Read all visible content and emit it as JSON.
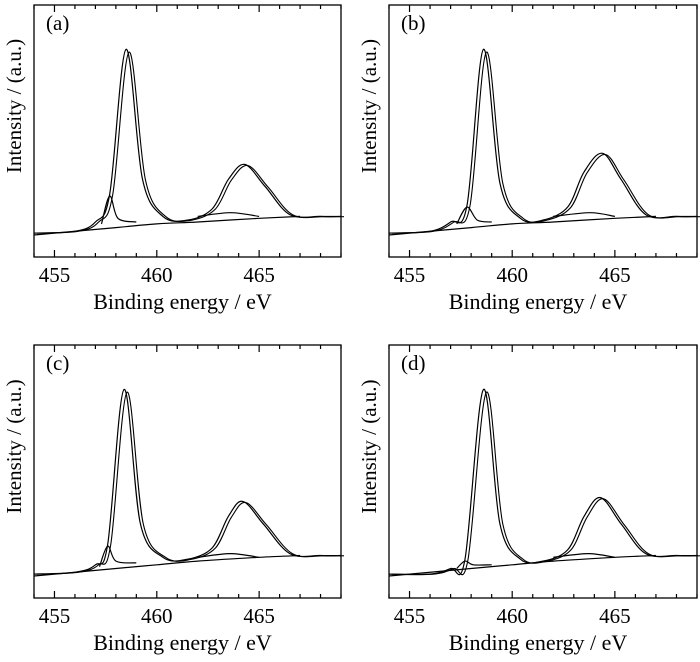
{
  "chart_data": [
    {
      "type": "line",
      "panel_label": "(a)",
      "xlabel": "Binding energy / eV",
      "ylabel": "Intensity / (a.u.)",
      "xlim": [
        454,
        469
      ],
      "ylim": [
        0,
        1.12
      ],
      "x_ticks": [
        455,
        460,
        465
      ],
      "x_tick_labels": [
        "455",
        "460",
        "465"
      ],
      "grid": false,
      "series": [
        {
          "values": [
            {
              "x": 454,
              "y": 0.01
            },
            {
              "x": 456,
              "y": 0.02
            },
            {
              "x": 457,
              "y": 0.07
            },
            {
              "x": 457.7,
              "y": 0.22
            },
            {
              "x": 458.5,
              "y": 1.0
            },
            {
              "x": 459.3,
              "y": 0.3
            },
            {
              "x": 460.3,
              "y": 0.1
            },
            {
              "x": 461.5,
              "y": 0.08
            },
            {
              "x": 462.7,
              "y": 0.14
            },
            {
              "x": 463.5,
              "y": 0.3
            },
            {
              "x": 464.3,
              "y": 0.38
            },
            {
              "x": 465.3,
              "y": 0.26
            },
            {
              "x": 466.5,
              "y": 0.11
            },
            {
              "x": 468,
              "y": 0.1
            },
            {
              "x": 469,
              "y": 0.1
            }
          ]
        },
        {
          "values": [
            {
              "x": 457.3,
              "y": 0.06
            },
            {
              "x": 457.7,
              "y": 0.21
            },
            {
              "x": 458.1,
              "y": 0.09
            },
            {
              "x": 459,
              "y": 0.07
            }
          ]
        },
        {
          "values": [
            {
              "x": 462,
              "y": 0.1
            },
            {
              "x": 463.6,
              "y": 0.12
            },
            {
              "x": 465,
              "y": 0.1
            }
          ]
        },
        {
          "values": [
            {
              "x": 454,
              "y": 0.0
            },
            {
              "x": 458,
              "y": 0.04
            },
            {
              "x": 460,
              "y": 0.06
            },
            {
              "x": 462,
              "y": 0.07
            },
            {
              "x": 465,
              "y": 0.09
            },
            {
              "x": 467,
              "y": 0.1
            }
          ]
        }
      ]
    },
    {
      "type": "line",
      "panel_label": "(b)",
      "xlabel": "Binding energy / eV",
      "ylabel": "Intensity / (a.u.)",
      "xlim": [
        454,
        469
      ],
      "ylim": [
        0,
        1.12
      ],
      "x_ticks": [
        455,
        460,
        465
      ],
      "x_tick_labels": [
        "455",
        "460",
        "465"
      ],
      "grid": false,
      "series": [
        {
          "values": [
            {
              "x": 454,
              "y": 0.01
            },
            {
              "x": 456,
              "y": 0.02
            },
            {
              "x": 457,
              "y": 0.07
            },
            {
              "x": 457.8,
              "y": 0.16
            },
            {
              "x": 458.6,
              "y": 1.0
            },
            {
              "x": 459.4,
              "y": 0.28
            },
            {
              "x": 460.4,
              "y": 0.09
            },
            {
              "x": 461.5,
              "y": 0.08
            },
            {
              "x": 462.7,
              "y": 0.15
            },
            {
              "x": 463.5,
              "y": 0.34
            },
            {
              "x": 464.4,
              "y": 0.44
            },
            {
              "x": 465.3,
              "y": 0.3
            },
            {
              "x": 466.5,
              "y": 0.11
            },
            {
              "x": 468,
              "y": 0.1
            },
            {
              "x": 469,
              "y": 0.1
            }
          ]
        },
        {
          "values": [
            {
              "x": 457.3,
              "y": 0.06
            },
            {
              "x": 457.8,
              "y": 0.15
            },
            {
              "x": 458.3,
              "y": 0.08
            },
            {
              "x": 459,
              "y": 0.07
            }
          ]
        },
        {
          "values": [
            {
              "x": 462,
              "y": 0.1
            },
            {
              "x": 463.8,
              "y": 0.12
            },
            {
              "x": 465,
              "y": 0.1
            }
          ]
        },
        {
          "values": [
            {
              "x": 454,
              "y": 0.0
            },
            {
              "x": 458,
              "y": 0.04
            },
            {
              "x": 460,
              "y": 0.06
            },
            {
              "x": 462,
              "y": 0.07
            },
            {
              "x": 465,
              "y": 0.09
            },
            {
              "x": 467,
              "y": 0.1
            }
          ]
        }
      ]
    },
    {
      "type": "line",
      "panel_label": "(c)",
      "xlabel": "Binding energy / eV",
      "ylabel": "Intensity / (a.u.)",
      "xlim": [
        454,
        469
      ],
      "ylim": [
        0,
        1.12
      ],
      "x_ticks": [
        455,
        460,
        465
      ],
      "x_tick_labels": [
        "455",
        "460",
        "465"
      ],
      "grid": false,
      "series": [
        {
          "values": [
            {
              "x": 454,
              "y": 0.01
            },
            {
              "x": 456,
              "y": 0.02
            },
            {
              "x": 457,
              "y": 0.06
            },
            {
              "x": 457.6,
              "y": 0.17
            },
            {
              "x": 458.4,
              "y": 1.0
            },
            {
              "x": 459.2,
              "y": 0.28
            },
            {
              "x": 460.3,
              "y": 0.1
            },
            {
              "x": 461.5,
              "y": 0.09
            },
            {
              "x": 462.7,
              "y": 0.15
            },
            {
              "x": 463.5,
              "y": 0.32
            },
            {
              "x": 464.2,
              "y": 0.4
            },
            {
              "x": 465.2,
              "y": 0.28
            },
            {
              "x": 466.5,
              "y": 0.12
            },
            {
              "x": 468,
              "y": 0.11
            },
            {
              "x": 469,
              "y": 0.11
            }
          ]
        },
        {
          "values": [
            {
              "x": 457.2,
              "y": 0.05
            },
            {
              "x": 457.6,
              "y": 0.16
            },
            {
              "x": 458,
              "y": 0.08
            },
            {
              "x": 459,
              "y": 0.07
            }
          ]
        },
        {
          "values": [
            {
              "x": 462,
              "y": 0.1
            },
            {
              "x": 463.6,
              "y": 0.12
            },
            {
              "x": 465,
              "y": 0.1
            }
          ]
        },
        {
          "values": [
            {
              "x": 454,
              "y": 0.0
            },
            {
              "x": 458,
              "y": 0.04
            },
            {
              "x": 460,
              "y": 0.06
            },
            {
              "x": 462,
              "y": 0.08
            },
            {
              "x": 465,
              "y": 0.1
            },
            {
              "x": 467,
              "y": 0.11
            }
          ]
        }
      ]
    },
    {
      "type": "line",
      "panel_label": "(d)",
      "xlabel": "Binding energy / eV",
      "ylabel": "Intensity / (a.u.)",
      "xlim": [
        454,
        469
      ],
      "ylim": [
        0,
        1.12
      ],
      "x_ticks": [
        455,
        460,
        465
      ],
      "x_tick_labels": [
        "455",
        "460",
        "465"
      ],
      "grid": false,
      "series": [
        {
          "values": [
            {
              "x": 454,
              "y": 0.01
            },
            {
              "x": 456,
              "y": 0.01
            },
            {
              "x": 457,
              "y": 0.04
            },
            {
              "x": 457.7,
              "y": 0.09
            },
            {
              "x": 458.6,
              "y": 1.0
            },
            {
              "x": 459.4,
              "y": 0.28
            },
            {
              "x": 460.4,
              "y": 0.09
            },
            {
              "x": 461.5,
              "y": 0.08
            },
            {
              "x": 462.7,
              "y": 0.14
            },
            {
              "x": 463.5,
              "y": 0.32
            },
            {
              "x": 464.3,
              "y": 0.42
            },
            {
              "x": 465.3,
              "y": 0.28
            },
            {
              "x": 466.5,
              "y": 0.12
            },
            {
              "x": 468,
              "y": 0.11
            },
            {
              "x": 469,
              "y": 0.11
            }
          ]
        },
        {
          "values": [
            {
              "x": 457.3,
              "y": 0.04
            },
            {
              "x": 457.7,
              "y": 0.08
            },
            {
              "x": 458.1,
              "y": 0.06
            },
            {
              "x": 459,
              "y": 0.06
            }
          ]
        },
        {
          "values": [
            {
              "x": 462,
              "y": 0.1
            },
            {
              "x": 463.7,
              "y": 0.12
            },
            {
              "x": 465,
              "y": 0.1
            }
          ]
        },
        {
          "values": [
            {
              "x": 454,
              "y": 0.0
            },
            {
              "x": 458,
              "y": 0.04
            },
            {
              "x": 460,
              "y": 0.06
            },
            {
              "x": 462,
              "y": 0.08
            },
            {
              "x": 465,
              "y": 0.1
            },
            {
              "x": 467,
              "y": 0.11
            }
          ]
        }
      ]
    }
  ]
}
